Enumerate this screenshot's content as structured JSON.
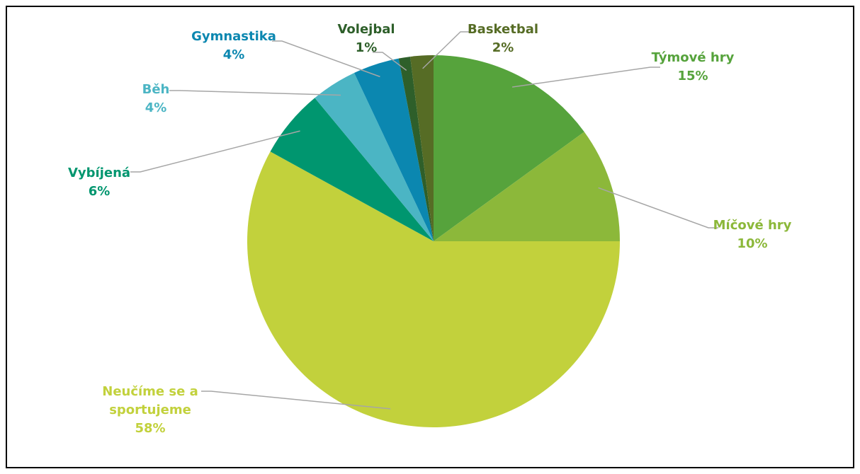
{
  "chart_data": {
    "type": "pie",
    "categories": [
      "Týmové hry",
      "Míčové hry",
      "Neučíme se a sportujeme",
      "Vybíjená",
      "Běh",
      "Gymnastika",
      "Volejbal",
      "Basketbal"
    ],
    "values": [
      15,
      10,
      58,
      6,
      4,
      4,
      1,
      2
    ],
    "value_labels": [
      "15%",
      "10%",
      "58%",
      "6%",
      "4%",
      "4%",
      "1%",
      "2%"
    ],
    "colors": [
      "#56a33c",
      "#8cb83a",
      "#c2d13c",
      "#00966f",
      "#4bb5c4",
      "#0b87b0",
      "#2e5f2a",
      "#566c25"
    ]
  }
}
